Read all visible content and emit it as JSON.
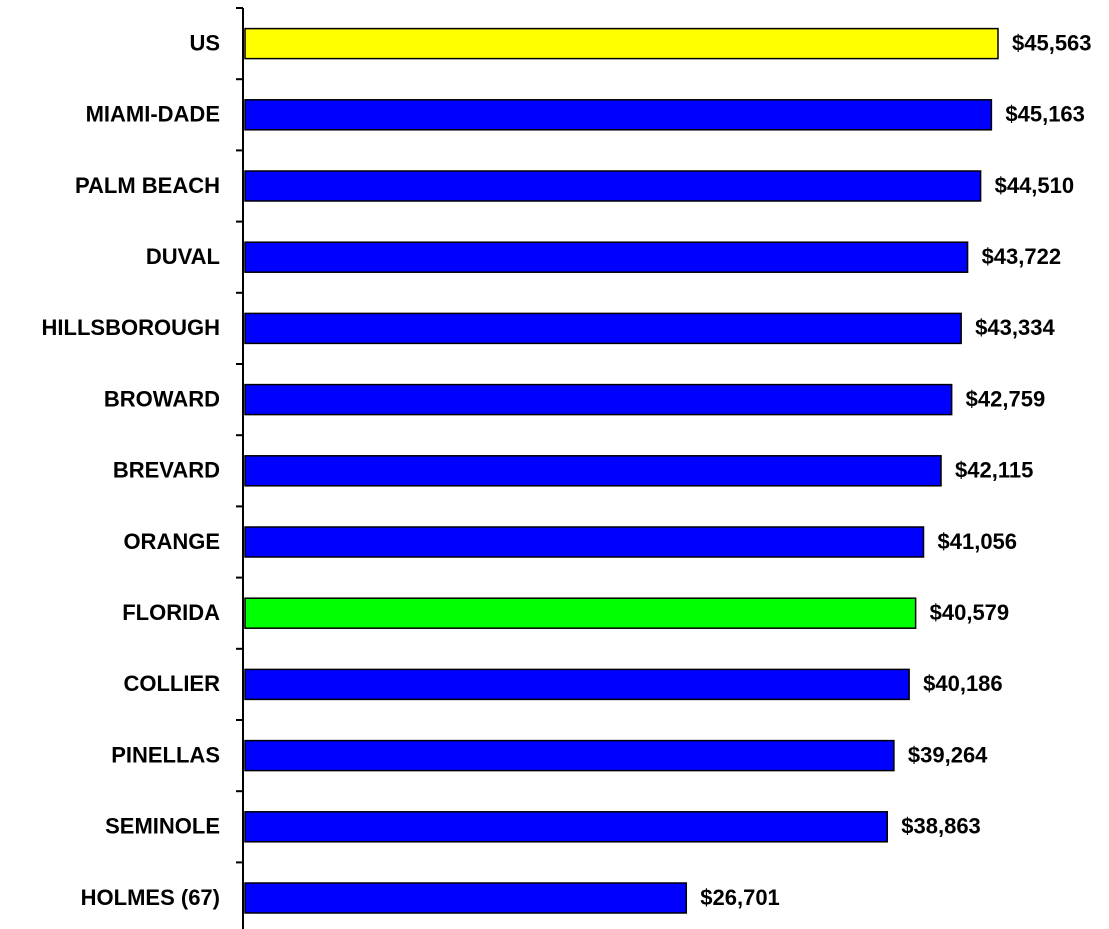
{
  "chart_data": {
    "type": "barh",
    "categories": [
      "US",
      "MIAMI-DADE",
      "PALM BEACH",
      "DUVAL",
      "HILLSBOROUGH",
      "BROWARD",
      "BREVARD",
      "ORANGE",
      "FLORIDA",
      "COLLIER",
      "PINELLAS",
      "SEMINOLE",
      "HOLMES (67)"
    ],
    "values": [
      45563,
      45163,
      44510,
      43722,
      43334,
      42759,
      42115,
      41056,
      40579,
      40186,
      39264,
      38863,
      26701
    ],
    "value_labels": [
      "$45,563",
      "$45,163",
      "$44,510",
      "$43,722",
      "$43,334",
      "$42,759",
      "$42,115",
      "$41,056",
      "$40,579",
      "$40,186",
      "$39,264",
      "$38,863",
      "$26,701"
    ],
    "colors": [
      "#ffff00",
      "#0000ff",
      "#0000ff",
      "#0000ff",
      "#0000ff",
      "#0000ff",
      "#0000ff",
      "#0000ff",
      "#00ff00",
      "#0000ff",
      "#0000ff",
      "#0000ff",
      "#0000ff"
    ],
    "xlim": [
      0,
      50000
    ]
  }
}
